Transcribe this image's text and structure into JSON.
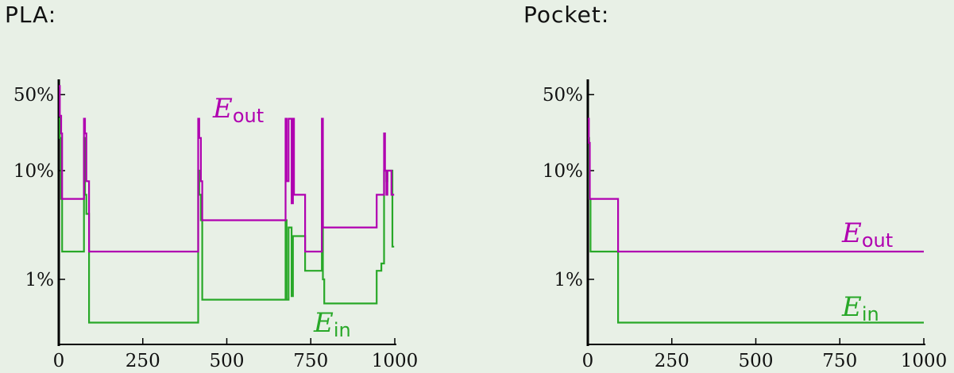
{
  "panels": [
    {
      "title": "PLA:"
    },
    {
      "title": "Pocket:"
    }
  ],
  "colors": {
    "e_out": "#b000b0",
    "e_in": "#28a828",
    "background": "#e8f0e6",
    "axis": "#000000"
  },
  "chart_data": [
    {
      "type": "line",
      "title": "PLA:",
      "xlabel": "",
      "ylabel": "",
      "x_scale": "linear",
      "y_scale": "log",
      "xlim": [
        0,
        1000
      ],
      "ylim": [
        0.0015,
        0.6
      ],
      "x_ticks": [
        0,
        250,
        500,
        750,
        1000
      ],
      "x_tick_labels": [
        "0",
        "250",
        "500",
        "750",
        "1000"
      ],
      "y_ticks": [
        0.01,
        0.1,
        0.5
      ],
      "y_tick_labels": [
        "1%",
        "10%",
        "50%"
      ],
      "grid": false,
      "series": [
        {
          "name": "E_out",
          "label_main": "E",
          "label_sub": "out",
          "color": "#b000b0",
          "x": [
            0,
            3,
            3,
            7,
            7,
            10,
            10,
            75,
            75,
            78,
            78,
            82,
            82,
            90,
            90,
            415,
            415,
            418,
            418,
            423,
            423,
            427,
            427,
            675,
            675,
            678,
            678,
            684,
            684,
            693,
            693,
            697,
            697,
            700,
            700,
            702,
            702,
            733,
            733,
            770,
            770,
            783,
            783,
            786,
            786,
            790,
            790,
            946,
            946,
            960,
            960,
            968,
            968,
            971,
            971,
            975,
            975,
            978,
            978,
            990,
            990,
            998
          ],
          "y": [
            0.6,
            0.6,
            0.32,
            0.32,
            0.22,
            0.22,
            0.055,
            0.055,
            0.3,
            0.3,
            0.22,
            0.22,
            0.08,
            0.08,
            0.018,
            0.018,
            0.3,
            0.3,
            0.2,
            0.2,
            0.08,
            0.08,
            0.035,
            0.035,
            0.3,
            0.3,
            0.08,
            0.08,
            0.3,
            0.3,
            0.05,
            0.05,
            0.3,
            0.3,
            0.06,
            0.06,
            0.06,
            0.06,
            0.018,
            0.018,
            0.018,
            0.018,
            0.3,
            0.3,
            0.03,
            0.03,
            0.03,
            0.03,
            0.06,
            0.06,
            0.06,
            0.06,
            0.22,
            0.22,
            0.1,
            0.1,
            0.06,
            0.06,
            0.1,
            0.1,
            0.06,
            0.06
          ]
        },
        {
          "name": "E_in",
          "label_main": "E",
          "label_sub": "in",
          "color": "#28a828",
          "x": [
            0,
            3,
            3,
            7,
            7,
            10,
            10,
            75,
            75,
            78,
            78,
            82,
            82,
            90,
            90,
            415,
            415,
            418,
            418,
            423,
            423,
            427,
            427,
            675,
            675,
            678,
            678,
            684,
            684,
            693,
            693,
            697,
            697,
            700,
            700,
            733,
            733,
            738,
            738,
            783,
            783,
            786,
            786,
            790,
            790,
            946,
            946,
            960,
            960,
            968,
            968,
            975,
            975,
            978,
            978,
            990,
            990,
            993,
            993,
            998
          ],
          "y": [
            0.3,
            0.3,
            0.2,
            0.2,
            0.055,
            0.055,
            0.018,
            0.018,
            0.2,
            0.2,
            0.06,
            0.06,
            0.04,
            0.04,
            0.004,
            0.004,
            0.1,
            0.1,
            0.06,
            0.06,
            0.035,
            0.035,
            0.0065,
            0.0065,
            0.035,
            0.035,
            0.0065,
            0.0065,
            0.03,
            0.03,
            0.007,
            0.007,
            0.025,
            0.025,
            0.025,
            0.025,
            0.012,
            0.012,
            0.012,
            0.012,
            0.1,
            0.1,
            0.01,
            0.01,
            0.006,
            0.006,
            0.012,
            0.012,
            0.014,
            0.014,
            0.1,
            0.1,
            0.08,
            0.08,
            0.1,
            0.1,
            0.1,
            0.1,
            0.02,
            0.02
          ]
        }
      ]
    },
    {
      "type": "line",
      "title": "Pocket:",
      "xlabel": "",
      "ylabel": "",
      "x_scale": "linear",
      "y_scale": "log",
      "xlim": [
        0,
        1000
      ],
      "ylim": [
        0.0015,
        0.6
      ],
      "x_ticks": [
        0,
        250,
        500,
        750,
        1000
      ],
      "x_tick_labels": [
        "0",
        "250",
        "500",
        "750",
        "1000"
      ],
      "y_ticks": [
        0.01,
        0.1,
        0.5
      ],
      "y_tick_labels": [
        "1%",
        "10%",
        "50%"
      ],
      "grid": false,
      "series": [
        {
          "name": "E_out",
          "label_main": "E",
          "label_sub": "out",
          "color": "#b000b0",
          "x": [
            0,
            3,
            3,
            6,
            6,
            10,
            10,
            90,
            90,
            1000
          ],
          "y": [
            0.3,
            0.3,
            0.18,
            0.18,
            0.055,
            0.055,
            0.055,
            0.055,
            0.018,
            0.018
          ]
        },
        {
          "name": "E_in",
          "label_main": "E",
          "label_sub": "in",
          "color": "#28a828",
          "x": [
            0,
            4,
            4,
            8,
            8,
            90,
            90,
            1000
          ],
          "y": [
            0.2,
            0.2,
            0.055,
            0.055,
            0.018,
            0.018,
            0.004,
            0.004
          ]
        }
      ]
    }
  ]
}
